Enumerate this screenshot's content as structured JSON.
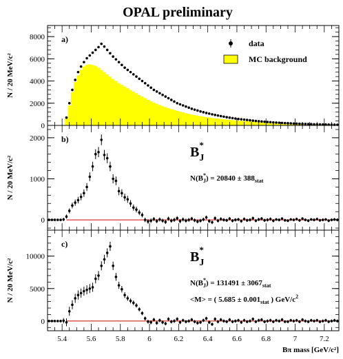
{
  "chart_data": {
    "type": "scatter",
    "title": "OPAL preliminary",
    "xlabel": "Bπ mass [GeV/c²]",
    "xlim": [
      5.3,
      7.3
    ],
    "x_ticks": [
      5.4,
      5.6,
      5.8,
      6,
      6.2,
      6.4,
      6.6,
      6.8,
      7,
      7.2
    ],
    "panels": [
      {
        "label": "a)",
        "ylabel": "N / 20 MeV/c²",
        "ylim": [
          0,
          9000
        ],
        "y_ticks": [
          0,
          2000,
          4000,
          6000,
          8000
        ],
        "legend": {
          "position": "top-right",
          "entries": [
            "data",
            "MC background"
          ]
        },
        "series": [
          {
            "name": "data",
            "kind": "points",
            "colors": {
              "marker": "#000000"
            }
          },
          {
            "name": "MC background",
            "kind": "histogram",
            "colors": {
              "fill": "#ffff00"
            }
          }
        ],
        "x": [
          5.43,
          5.45,
          5.47,
          5.49,
          5.51,
          5.53,
          5.55,
          5.57,
          5.59,
          5.61,
          5.63,
          5.65,
          5.67,
          5.69,
          5.71,
          5.73,
          5.75,
          5.77,
          5.79,
          5.81,
          5.83,
          5.85,
          5.87,
          5.89,
          5.91,
          5.93,
          5.95,
          5.97,
          5.99,
          6.01,
          6.03,
          6.05,
          6.07,
          6.09,
          6.11,
          6.13,
          6.15,
          6.17,
          6.19,
          6.21,
          6.23,
          6.25,
          6.27,
          6.29,
          6.31,
          6.33,
          6.35,
          6.37,
          6.39,
          6.41,
          6.43,
          6.45,
          6.47,
          6.49,
          6.51,
          6.53,
          6.55,
          6.57,
          6.59,
          6.61,
          6.63,
          6.65,
          6.67,
          6.69,
          6.71,
          6.73,
          6.75,
          6.77,
          6.79,
          6.81,
          6.83,
          6.85,
          6.87,
          6.89,
          6.91,
          6.93,
          6.95,
          6.97,
          6.99,
          7.01,
          7.03,
          7.05,
          7.07,
          7.09,
          7.11,
          7.13,
          7.15,
          7.17,
          7.19,
          7.21,
          7.23,
          7.25,
          7.27,
          7.29
        ],
        "data_y": [
          700,
          2000,
          3200,
          4100,
          4800,
          5300,
          5700,
          6050,
          6300,
          6550,
          6800,
          7050,
          7350,
          7100,
          6800,
          6500,
          6200,
          5950,
          5700,
          5450,
          5200,
          5000,
          4800,
          4600,
          4400,
          4200,
          4000,
          3800,
          3600,
          3400,
          3200,
          3050,
          2900,
          2750,
          2600,
          2450,
          2300,
          2150,
          2000,
          1900,
          1800,
          1700,
          1600,
          1500,
          1420,
          1340,
          1260,
          1190,
          1120,
          1060,
          1000,
          940,
          890,
          840,
          790,
          740,
          700,
          660,
          620,
          580,
          550,
          520,
          490,
          460,
          430,
          400,
          375,
          350,
          330,
          310,
          290,
          270,
          255,
          240,
          225,
          210,
          195,
          180,
          170,
          160,
          150,
          140,
          130,
          120,
          110,
          100,
          95,
          90,
          85,
          80,
          75,
          70,
          65,
          60
        ],
        "mc_y": [
          600,
          1800,
          3000,
          3900,
          4500,
          5000,
          5300,
          5450,
          5500,
          5450,
          5350,
          5200,
          5000,
          4800,
          4600,
          4400,
          4200,
          4000,
          3800,
          3650,
          3500,
          3350,
          3200,
          3050,
          2900,
          2750,
          2600,
          2450,
          2300,
          2180,
          2060,
          1950,
          1850,
          1750,
          1650,
          1560,
          1470,
          1390,
          1310,
          1240,
          1170,
          1100,
          1040,
          980,
          930,
          880,
          830,
          790,
          750,
          710,
          670,
          640,
          610,
          580,
          550,
          520,
          490,
          470,
          450,
          430,
          410,
          390,
          370,
          350,
          330,
          310,
          295,
          280,
          265,
          250,
          235,
          220,
          210,
          200,
          190,
          180,
          170,
          160,
          150,
          140,
          130,
          120,
          112,
          105,
          98,
          92,
          86,
          80,
          75,
          70,
          65,
          60,
          55,
          50
        ]
      },
      {
        "label": "b)",
        "ylabel": "N / 20 MeV/c²",
        "ylim": [
          -250,
          2300
        ],
        "y_ticks": [
          0,
          1000,
          2000
        ],
        "signal_label": {
          "symbol": "B",
          "sub": "J",
          "sup": "*"
        },
        "annotation": {
          "prefix": "N(B",
          "sub": "J",
          "sup": "*",
          "value": ") = 20840 ± 388",
          "suffix_sub": "stat"
        },
        "series": [
          {
            "name": "data",
            "kind": "points_with_errors",
            "colors": {
              "marker": "#000000",
              "fit": "#cc0000"
            }
          }
        ],
        "x": [
          5.31,
          5.33,
          5.35,
          5.37,
          5.39,
          5.41,
          5.43,
          5.45,
          5.47,
          5.49,
          5.51,
          5.53,
          5.55,
          5.57,
          5.59,
          5.61,
          5.63,
          5.65,
          5.67,
          5.69,
          5.71,
          5.73,
          5.75,
          5.77,
          5.79,
          5.81,
          5.83,
          5.85,
          5.87,
          5.89,
          5.91,
          5.93,
          5.95,
          5.97,
          5.99,
          6.01,
          6.03,
          6.05,
          6.07,
          6.09,
          6.11,
          6.13,
          6.15,
          6.17,
          6.19,
          6.21,
          6.23,
          6.25,
          6.27,
          6.29,
          6.31,
          6.33,
          6.35,
          6.37,
          6.39,
          6.41,
          6.43,
          6.45,
          6.47,
          6.49,
          6.51,
          6.53,
          6.55,
          6.57,
          6.59,
          6.61,
          6.63,
          6.65,
          6.67,
          6.69,
          6.71,
          6.73,
          6.75,
          6.77,
          6.79,
          6.81,
          6.83,
          6.85,
          6.87,
          6.89,
          6.91,
          6.93,
          6.95,
          6.97,
          6.99,
          7.01,
          7.03,
          7.05,
          7.07,
          7.09,
          7.11,
          7.13,
          7.15,
          7.17,
          7.19,
          7.21,
          7.23,
          7.25,
          7.27,
          7.29
        ],
        "y": [
          0,
          0,
          0,
          0,
          0,
          10,
          80,
          220,
          350,
          420,
          480,
          560,
          650,
          800,
          1050,
          1300,
          1600,
          1650,
          1950,
          1580,
          1500,
          1300,
          1000,
          950,
          700,
          650,
          550,
          500,
          400,
          300,
          250,
          180,
          120,
          0,
          -40,
          -20,
          20,
          -30,
          10,
          -20,
          -50,
          30,
          -20,
          0,
          40,
          -30,
          10,
          -20,
          0,
          30,
          -10,
          -40,
          -20,
          10,
          60,
          -30,
          -60,
          40,
          -20,
          20,
          0,
          -10,
          30,
          -20,
          0,
          10,
          -30,
          20,
          -10,
          0,
          40,
          -20,
          10,
          30,
          -10,
          0,
          20,
          -20,
          10,
          0,
          30,
          -10,
          -20,
          10,
          0,
          20,
          -10,
          30,
          0,
          -20,
          10,
          0,
          20,
          -10,
          0,
          10,
          -20,
          0,
          10,
          0
        ],
        "yerr": [
          20,
          20,
          20,
          20,
          30,
          40,
          50,
          60,
          70,
          75,
          80,
          85,
          90,
          95,
          105,
          115,
          120,
          125,
          130,
          125,
          120,
          115,
          110,
          105,
          100,
          95,
          90,
          85,
          80,
          75,
          70,
          65,
          60,
          55,
          55,
          55,
          50,
          50,
          50,
          50,
          50,
          50,
          50,
          50,
          50,
          50,
          50,
          50,
          45,
          45,
          45,
          45,
          45,
          45,
          45,
          45,
          45,
          45,
          45,
          45,
          40,
          40,
          40,
          40,
          40,
          40,
          40,
          40,
          40,
          40,
          40,
          40,
          40,
          40,
          40,
          40,
          40,
          40,
          35,
          35,
          35,
          35,
          35,
          35,
          35,
          35,
          35,
          35,
          35,
          35,
          35,
          35,
          35,
          35,
          35,
          35,
          35,
          35,
          35,
          35
        ]
      },
      {
        "label": "c)",
        "ylabel": "N / 20 MeV/c²",
        "ylim": [
          -1500,
          14000
        ],
        "y_ticks": [
          0,
          5000,
          10000
        ],
        "signal_label": {
          "symbol": "B",
          "sub": "J",
          "sup": "*"
        },
        "annotation": {
          "prefix": "N(B",
          "sub": "J",
          "sup": "*",
          "value": ") = 131491 ± 3067",
          "suffix_sub": "stat"
        },
        "annotation2": {
          "prefix": "<M> = ( 5.685 ± 0.001",
          "sub": "stat",
          "suffix": " ) GeV/c",
          "sup": "2"
        },
        "series": [
          {
            "name": "data",
            "kind": "points_with_errors",
            "colors": {
              "marker": "#000000",
              "fit": "#cc0000"
            }
          }
        ],
        "x": [
          5.31,
          5.33,
          5.35,
          5.37,
          5.39,
          5.41,
          5.43,
          5.45,
          5.47,
          5.49,
          5.51,
          5.53,
          5.55,
          5.57,
          5.59,
          5.61,
          5.63,
          5.65,
          5.67,
          5.69,
          5.71,
          5.73,
          5.75,
          5.77,
          5.79,
          5.81,
          5.83,
          5.85,
          5.87,
          5.89,
          5.91,
          5.93,
          5.95,
          5.97,
          5.99,
          6.01,
          6.03,
          6.05,
          6.07,
          6.09,
          6.11,
          6.13,
          6.15,
          6.17,
          6.19,
          6.21,
          6.23,
          6.25,
          6.27,
          6.29,
          6.31,
          6.33,
          6.35,
          6.37,
          6.39,
          6.41,
          6.43,
          6.45,
          6.47,
          6.49,
          6.51,
          6.53,
          6.55,
          6.57,
          6.59,
          6.61,
          6.63,
          6.65,
          6.67,
          6.69,
          6.71,
          6.73,
          6.75,
          6.77,
          6.79,
          6.81,
          6.83,
          6.85,
          6.87,
          6.89,
          6.91,
          6.93,
          6.95,
          6.97,
          6.99,
          7.01,
          7.03,
          7.05,
          7.07,
          7.09,
          7.11,
          7.13,
          7.15,
          7.17,
          7.19,
          7.21,
          7.23,
          7.25,
          7.27,
          7.29
        ],
        "y": [
          0,
          0,
          0,
          0,
          0,
          50,
          -200,
          1500,
          2500,
          3500,
          4000,
          4300,
          4600,
          4800,
          5000,
          5200,
          6500,
          7000,
          8500,
          9500,
          10500,
          11500,
          8500,
          6800,
          5500,
          4900,
          4000,
          3500,
          3100,
          2800,
          2400,
          1800,
          1200,
          400,
          -100,
          -200,
          200,
          -300,
          100,
          -200,
          -400,
          300,
          -100,
          0,
          300,
          -200,
          100,
          -100,
          0,
          200,
          -100,
          -300,
          -200,
          100,
          400,
          -200,
          -500,
          300,
          -100,
          200,
          0,
          -100,
          200,
          -100,
          0,
          100,
          -200,
          100,
          -100,
          0,
          300,
          -100,
          100,
          200,
          -100,
          0,
          100,
          -100,
          100,
          0,
          200,
          -100,
          -100,
          100,
          0,
          100,
          -100,
          200,
          0,
          -100,
          100,
          0,
          100,
          -100,
          0,
          100,
          -100,
          0,
          100,
          0
        ],
        "yerr": [
          150,
          150,
          150,
          150,
          200,
          400,
          600,
          700,
          700,
          700,
          700,
          700,
          700,
          700,
          700,
          700,
          700,
          700,
          700,
          700,
          700,
          700,
          650,
          600,
          550,
          500,
          450,
          400,
          380,
          360,
          340,
          320,
          300,
          300,
          300,
          300,
          280,
          280,
          280,
          280,
          280,
          280,
          280,
          280,
          280,
          280,
          260,
          260,
          260,
          260,
          260,
          260,
          260,
          260,
          260,
          260,
          260,
          260,
          260,
          260,
          250,
          250,
          250,
          250,
          250,
          250,
          250,
          250,
          250,
          250,
          250,
          250,
          250,
          250,
          250,
          250,
          250,
          250,
          240,
          240,
          240,
          240,
          240,
          240,
          240,
          240,
          240,
          240,
          240,
          240,
          240,
          240,
          240,
          240,
          240,
          240,
          240,
          240,
          240,
          240
        ]
      }
    ]
  }
}
